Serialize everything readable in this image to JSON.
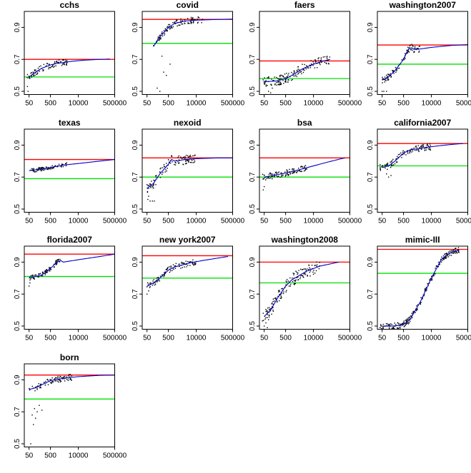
{
  "figure": {
    "description_free": true,
    "x_tick_labels": [
      "50",
      "500",
      "10000",
      "500000"
    ],
    "x_tick_values": [
      50,
      500,
      10000,
      500000
    ],
    "y_tick_labels": [
      "0.5",
      "0.7",
      "0.9"
    ],
    "y_tick_values": [
      0.5,
      0.7,
      0.9
    ],
    "colors": {
      "upper_line": "#ff0000",
      "lower_line": "#00e000",
      "fit_curve": "#0000cc",
      "points": "#000000",
      "frame": "#000000"
    }
  },
  "chart_data": [
    {
      "type": "scatter",
      "title": "cchs",
      "xlog": true,
      "xlim": [
        30,
        500000
      ],
      "ylim": [
        0.48,
        1.0
      ],
      "red_line": 0.7,
      "green_line": 0.59,
      "fit": [
        [
          50,
          0.59
        ],
        [
          100,
          0.62
        ],
        [
          200,
          0.645
        ],
        [
          500,
          0.665
        ],
        [
          1000,
          0.675
        ],
        [
          5000,
          0.688
        ],
        [
          20000,
          0.695
        ],
        [
          100000,
          0.7
        ],
        [
          300000,
          0.702
        ]
      ],
      "points_spec": {
        "xmin": 40,
        "xmax": 3000,
        "count": 90,
        "spread": 0.02,
        "scatter_low": [
          [
            45,
            0.5
          ],
          [
            42,
            0.53
          ]
        ]
      }
    },
    {
      "type": "scatter",
      "title": "covid",
      "xlog": true,
      "xlim": [
        30,
        500000
      ],
      "ylim": [
        0.48,
        1.0
      ],
      "red_line": 0.95,
      "green_line": 0.8,
      "fit": [
        [
          100,
          0.78
        ],
        [
          200,
          0.84
        ],
        [
          500,
          0.9
        ],
        [
          1000,
          0.925
        ],
        [
          3000,
          0.94
        ],
        [
          10000,
          0.945
        ],
        [
          100000,
          0.95
        ],
        [
          500000,
          0.952
        ]
      ],
      "points_spec": {
        "xmin": 100,
        "xmax": 20000,
        "count": 110,
        "spread": 0.02,
        "scatter_low": [
          [
            150,
            0.52
          ],
          [
            200,
            0.5
          ],
          [
            300,
            0.62
          ],
          [
            400,
            0.6
          ],
          [
            600,
            0.67
          ],
          [
            250,
            0.72
          ]
        ]
      }
    },
    {
      "type": "scatter",
      "title": "faers",
      "xlog": true,
      "xlim": [
        30,
        500000
      ],
      "ylim": [
        0.48,
        1.0
      ],
      "red_line": 0.69,
      "green_line": 0.58,
      "fit": [
        [
          50,
          0.56
        ],
        [
          200,
          0.565
        ],
        [
          500,
          0.58
        ],
        [
          1000,
          0.6
        ],
        [
          3000,
          0.64
        ],
        [
          10000,
          0.67
        ],
        [
          30000,
          0.69
        ],
        [
          60000,
          0.7
        ]
      ],
      "points_spec": {
        "xmin": 40,
        "xmax": 60000,
        "count": 160,
        "spread": 0.03,
        "scatter_low": [
          [
            60,
            0.48
          ],
          [
            80,
            0.5
          ],
          [
            100,
            0.49
          ],
          [
            120,
            0.52
          ]
        ]
      }
    },
    {
      "type": "scatter",
      "title": "washington2007",
      "xlog": true,
      "xlim": [
        30,
        500000
      ],
      "ylim": [
        0.48,
        1.0
      ],
      "red_line": 0.79,
      "green_line": 0.67,
      "fit": [
        [
          50,
          0.57
        ],
        [
          100,
          0.59
        ],
        [
          200,
          0.63
        ],
        [
          500,
          0.7
        ],
        [
          800,
          0.76
        ],
        [
          1200,
          0.775
        ],
        [
          1500,
          0.762
        ],
        [
          3000,
          0.765
        ],
        [
          10000,
          0.775
        ],
        [
          100000,
          0.788
        ],
        [
          500000,
          0.792
        ]
      ],
      "points_spec": {
        "xmin": 50,
        "xmax": 3000,
        "count": 90,
        "spread": 0.02,
        "scatter_low": [
          [
            50,
            0.5
          ],
          [
            60,
            0.5
          ],
          [
            80,
            0.5
          ]
        ]
      }
    },
    {
      "type": "scatter",
      "title": "texas",
      "xlog": true,
      "xlim": [
        30,
        500000
      ],
      "ylim": [
        0.48,
        1.0
      ],
      "red_line": 0.81,
      "green_line": 0.69,
      "fit": [
        [
          50,
          0.74
        ],
        [
          200,
          0.75
        ],
        [
          500,
          0.76
        ],
        [
          2000,
          0.775
        ],
        [
          10000,
          0.785
        ],
        [
          100000,
          0.8
        ],
        [
          500000,
          0.81
        ]
      ],
      "points_spec": {
        "xmin": 50,
        "xmax": 3000,
        "count": 80,
        "spread": 0.012,
        "scatter_low": []
      }
    },
    {
      "type": "scatter",
      "title": "nexoid",
      "xlog": true,
      "xlim": [
        30,
        500000
      ],
      "ylim": [
        0.48,
        1.0
      ],
      "red_line": 0.82,
      "green_line": 0.7,
      "fit": [
        [
          50,
          0.63
        ],
        [
          100,
          0.66
        ],
        [
          200,
          0.72
        ],
        [
          500,
          0.78
        ],
        [
          700,
          0.81
        ],
        [
          1000,
          0.8
        ],
        [
          3000,
          0.81
        ],
        [
          10000,
          0.815
        ],
        [
          100000,
          0.82
        ],
        [
          500000,
          0.82
        ]
      ],
      "points_spec": {
        "xmin": 50,
        "xmax": 10000,
        "count": 110,
        "spread": 0.03,
        "scatter_low": [
          [
            55,
            0.56
          ],
          [
            70,
            0.55
          ],
          [
            90,
            0.55
          ],
          [
            110,
            0.55
          ],
          [
            60,
            0.58
          ]
        ]
      }
    },
    {
      "type": "scatter",
      "title": "bsa",
      "xlog": true,
      "xlim": [
        30,
        500000
      ],
      "ylim": [
        0.48,
        1.0
      ],
      "red_line": 0.82,
      "green_line": 0.7,
      "fit": [
        [
          50,
          0.7
        ],
        [
          200,
          0.715
        ],
        [
          500,
          0.725
        ],
        [
          2000,
          0.745
        ],
        [
          10000,
          0.77
        ],
        [
          50000,
          0.795
        ],
        [
          200000,
          0.815
        ],
        [
          300000,
          0.82
        ]
      ],
      "points_spec": {
        "xmin": 40,
        "xmax": 5000,
        "count": 100,
        "spread": 0.02,
        "scatter_low": [
          [
            45,
            0.62
          ],
          [
            50,
            0.64
          ]
        ]
      }
    },
    {
      "type": "scatter",
      "title": "california2007",
      "xlog": true,
      "xlim": [
        30,
        500000
      ],
      "ylim": [
        0.48,
        1.0
      ],
      "red_line": 0.91,
      "green_line": 0.77,
      "fit": [
        [
          50,
          0.76
        ],
        [
          100,
          0.77
        ],
        [
          200,
          0.8
        ],
        [
          500,
          0.85
        ],
        [
          1000,
          0.87
        ],
        [
          5000,
          0.885
        ],
        [
          20000,
          0.895
        ],
        [
          100000,
          0.905
        ],
        [
          300000,
          0.91
        ]
      ],
      "points_spec": {
        "xmin": 40,
        "xmax": 10000,
        "count": 110,
        "spread": 0.02,
        "scatter_low": [
          [
            100,
            0.7
          ],
          [
            130,
            0.71
          ],
          [
            80,
            0.72
          ]
        ]
      }
    },
    {
      "type": "scatter",
      "title": "florida2007",
      "xlog": true,
      "xlim": [
        30,
        500000
      ],
      "ylim": [
        0.48,
        1.0
      ],
      "red_line": 0.95,
      "green_line": 0.81,
      "fit": [
        [
          50,
          0.8
        ],
        [
          200,
          0.82
        ],
        [
          500,
          0.86
        ],
        [
          1000,
          0.9
        ],
        [
          1500,
          0.91
        ],
        [
          2000,
          0.9
        ],
        [
          10000,
          0.915
        ],
        [
          100000,
          0.935
        ],
        [
          500000,
          0.95
        ]
      ],
      "points_spec": {
        "xmin": 50,
        "xmax": 1500,
        "count": 80,
        "spread": 0.015,
        "scatter_low": [
          [
            50,
            0.75
          ],
          [
            55,
            0.77
          ]
        ]
      }
    },
    {
      "type": "scatter",
      "title": "new york2007",
      "xlog": true,
      "xlim": [
        30,
        500000
      ],
      "ylim": [
        0.48,
        1.0
      ],
      "red_line": 0.94,
      "green_line": 0.8,
      "fit": [
        [
          50,
          0.75
        ],
        [
          100,
          0.77
        ],
        [
          200,
          0.8
        ],
        [
          500,
          0.85
        ],
        [
          1000,
          0.87
        ],
        [
          5000,
          0.895
        ],
        [
          20000,
          0.91
        ],
        [
          100000,
          0.925
        ],
        [
          300000,
          0.935
        ]
      ],
      "points_spec": {
        "xmin": 50,
        "xmax": 10000,
        "count": 110,
        "spread": 0.02,
        "scatter_low": [
          [
            50,
            0.7
          ],
          [
            60,
            0.72
          ]
        ]
      }
    },
    {
      "type": "scatter",
      "title": "washington2008",
      "xlog": true,
      "xlim": [
        30,
        500000
      ],
      "ylim": [
        0.48,
        1.0
      ],
      "red_line": 0.9,
      "green_line": 0.77,
      "fit": [
        [
          50,
          0.56
        ],
        [
          100,
          0.6
        ],
        [
          200,
          0.67
        ],
        [
          500,
          0.75
        ],
        [
          1000,
          0.79
        ],
        [
          5000,
          0.845
        ],
        [
          20000,
          0.875
        ],
        [
          100000,
          0.895
        ],
        [
          150000,
          0.9
        ]
      ],
      "points_spec": {
        "xmin": 40,
        "xmax": 20000,
        "count": 150,
        "spread": 0.04,
        "scatter_low": [
          [
            50,
            0.5
          ],
          [
            60,
            0.52
          ],
          [
            70,
            0.49
          ],
          [
            80,
            0.54
          ],
          [
            45,
            0.58
          ]
        ]
      }
    },
    {
      "type": "scatter",
      "title": "mimic-III",
      "xlog": true,
      "xlim": [
        30,
        500000
      ],
      "ylim": [
        0.48,
        1.0
      ],
      "red_line": 0.98,
      "green_line": 0.83,
      "fit": [
        [
          50,
          0.5
        ],
        [
          200,
          0.5
        ],
        [
          500,
          0.51
        ],
        [
          1000,
          0.54
        ],
        [
          3000,
          0.65
        ],
        [
          10000,
          0.8
        ],
        [
          30000,
          0.92
        ],
        [
          80000,
          0.96
        ],
        [
          200000,
          0.975
        ]
      ],
      "points_spec": {
        "xmin": 40,
        "xmax": 200000,
        "count": 220,
        "spread": 0.02,
        "scatter_low": []
      }
    },
    {
      "type": "scatter",
      "title": "born",
      "xlog": true,
      "xlim": [
        30,
        500000
      ],
      "ylim": [
        0.48,
        1.0
      ],
      "red_line": 0.93,
      "green_line": 0.78,
      "fit": [
        [
          50,
          0.84
        ],
        [
          100,
          0.85
        ],
        [
          200,
          0.87
        ],
        [
          500,
          0.895
        ],
        [
          2000,
          0.91
        ],
        [
          10000,
          0.92
        ],
        [
          100000,
          0.928
        ],
        [
          500000,
          0.93
        ]
      ],
      "points_spec": {
        "xmin": 50,
        "xmax": 5000,
        "count": 90,
        "spread": 0.02,
        "scatter_low": [
          [
            60,
            0.5
          ],
          [
            80,
            0.62
          ],
          [
            100,
            0.66
          ],
          [
            120,
            0.7
          ],
          [
            150,
            0.74
          ],
          [
            200,
            0.71
          ],
          [
            70,
            0.68
          ],
          [
            90,
            0.72
          ]
        ]
      }
    }
  ]
}
